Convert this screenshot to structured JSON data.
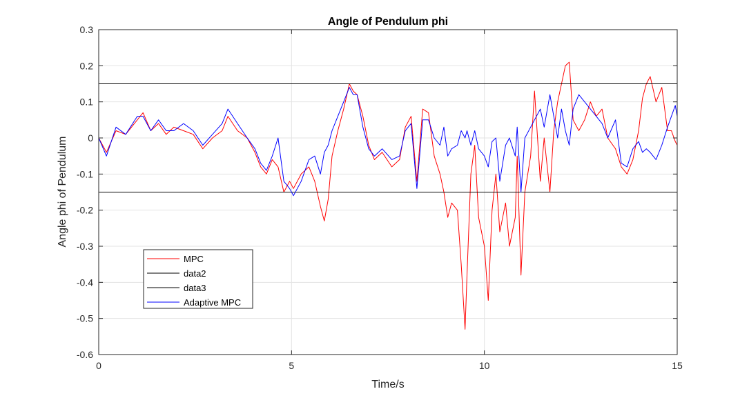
{
  "chart_data": {
    "type": "line",
    "title": "Angle of Pendulum phi",
    "xlabel": "Time/s",
    "ylabel": "Angle phi of Pendulum",
    "xlim": [
      0,
      15
    ],
    "ylim": [
      -0.6,
      0.3
    ],
    "xticks": [
      0,
      5,
      10,
      15
    ],
    "xtick_labels": [
      "0",
      "5",
      "10",
      "15"
    ],
    "yticks": [
      0.3,
      0.2,
      0.1,
      0,
      -0.1,
      -0.2,
      -0.3,
      -0.4,
      -0.5,
      -0.6
    ],
    "ytick_labels": [
      "0.3",
      "0.2",
      "0.1",
      "0",
      "-0.1",
      "-0.2",
      "-0.3",
      "-0.4",
      "-0.5",
      "-0.6"
    ],
    "grid": true,
    "legend_position": "lower-left",
    "series": [
      {
        "name": "MPC",
        "color": "#ff0000",
        "x": [
          0,
          0.2,
          0.45,
          0.7,
          1.0,
          1.15,
          1.35,
          1.55,
          1.75,
          1.95,
          2.2,
          2.45,
          2.7,
          2.95,
          3.2,
          3.35,
          3.6,
          3.85,
          4.05,
          4.2,
          4.35,
          4.5,
          4.65,
          4.8,
          4.95,
          5.05,
          5.25,
          5.45,
          5.6,
          5.75,
          5.85,
          5.95,
          6.05,
          6.2,
          6.35,
          6.5,
          6.6,
          6.7,
          6.85,
          7.0,
          7.15,
          7.35,
          7.6,
          7.8,
          7.95,
          8.1,
          8.25,
          8.4,
          8.55,
          8.7,
          8.85,
          8.95,
          9.05,
          9.15,
          9.3,
          9.4,
          9.5,
          9.55,
          9.65,
          9.75,
          9.85,
          10.0,
          10.1,
          10.2,
          10.3,
          10.4,
          10.55,
          10.65,
          10.8,
          10.85,
          10.95,
          11.05,
          11.2,
          11.3,
          11.45,
          11.55,
          11.7,
          11.8,
          11.9,
          12.0,
          12.1,
          12.2,
          12.3,
          12.45,
          12.6,
          12.75,
          12.9,
          13.05,
          13.2,
          13.4,
          13.55,
          13.7,
          13.85,
          14.0,
          14.1,
          14.2,
          14.3,
          14.45,
          14.6,
          14.75,
          14.85,
          14.95,
          15.0
        ],
        "y": [
          0,
          -0.04,
          0.02,
          0.01,
          0.05,
          0.07,
          0.02,
          0.04,
          0.01,
          0.03,
          0.02,
          0.01,
          -0.03,
          0.0,
          0.02,
          0.06,
          0.02,
          0.0,
          -0.04,
          -0.08,
          -0.1,
          -0.06,
          -0.08,
          -0.15,
          -0.12,
          -0.14,
          -0.1,
          -0.08,
          -0.12,
          -0.19,
          -0.23,
          -0.17,
          -0.05,
          0.02,
          0.08,
          0.15,
          0.13,
          0.12,
          0.06,
          -0.02,
          -0.06,
          -0.04,
          -0.08,
          -0.06,
          0.03,
          0.06,
          -0.12,
          0.08,
          0.07,
          -0.05,
          -0.1,
          -0.15,
          -0.22,
          -0.18,
          -0.2,
          -0.35,
          -0.53,
          -0.38,
          -0.1,
          -0.02,
          -0.22,
          -0.3,
          -0.45,
          -0.2,
          -0.1,
          -0.26,
          -0.18,
          -0.3,
          -0.22,
          -0.05,
          -0.38,
          -0.15,
          -0.05,
          0.13,
          -0.12,
          0.0,
          -0.15,
          0.02,
          0.1,
          0.15,
          0.2,
          0.21,
          0.05,
          0.02,
          0.05,
          0.1,
          0.06,
          0.08,
          0.0,
          -0.03,
          -0.08,
          -0.1,
          -0.06,
          0.02,
          0.11,
          0.15,
          0.17,
          0.1,
          0.14,
          0.02,
          0.02,
          -0.01,
          -0.02
        ]
      },
      {
        "name": "data2",
        "color": "#000000",
        "x": [
          0,
          15
        ],
        "y": [
          0.15,
          0.15
        ]
      },
      {
        "name": "data3",
        "color": "#000000",
        "x": [
          0,
          15
        ],
        "y": [
          -0.15,
          -0.15
        ]
      },
      {
        "name": "Adaptive MPC",
        "color": "#0000ff",
        "x": [
          0,
          0.2,
          0.45,
          0.7,
          1.0,
          1.15,
          1.35,
          1.55,
          1.75,
          1.95,
          2.2,
          2.45,
          2.7,
          2.95,
          3.2,
          3.35,
          3.6,
          3.85,
          4.05,
          4.2,
          4.35,
          4.5,
          4.65,
          4.8,
          4.95,
          5.05,
          5.25,
          5.45,
          5.6,
          5.75,
          5.85,
          5.95,
          6.05,
          6.2,
          6.35,
          6.5,
          6.6,
          6.7,
          6.85,
          7.0,
          7.15,
          7.35,
          7.6,
          7.8,
          7.95,
          8.1,
          8.25,
          8.4,
          8.55,
          8.7,
          8.85,
          8.95,
          9.05,
          9.15,
          9.3,
          9.4,
          9.5,
          9.55,
          9.65,
          9.75,
          9.85,
          10.0,
          10.1,
          10.2,
          10.3,
          10.4,
          10.55,
          10.65,
          10.8,
          10.85,
          10.95,
          11.05,
          11.2,
          11.3,
          11.45,
          11.55,
          11.7,
          11.8,
          11.9,
          12.0,
          12.1,
          12.2,
          12.3,
          12.45,
          12.6,
          12.75,
          12.9,
          13.05,
          13.2,
          13.4,
          13.55,
          13.7,
          13.85,
          14.0,
          14.1,
          14.2,
          14.3,
          14.45,
          14.6,
          14.75,
          14.85,
          14.95,
          15.0
        ],
        "y": [
          0,
          -0.05,
          0.03,
          0.01,
          0.06,
          0.06,
          0.02,
          0.05,
          0.02,
          0.02,
          0.04,
          0.02,
          -0.02,
          0.01,
          0.04,
          0.08,
          0.04,
          0.0,
          -0.03,
          -0.07,
          -0.09,
          -0.05,
          0.0,
          -0.12,
          -0.14,
          -0.16,
          -0.12,
          -0.06,
          -0.05,
          -0.1,
          -0.04,
          -0.02,
          0.02,
          0.06,
          0.1,
          0.14,
          0.12,
          0.12,
          0.03,
          -0.03,
          -0.05,
          -0.03,
          -0.06,
          -0.05,
          0.02,
          0.04,
          -0.14,
          0.05,
          0.05,
          0.0,
          -0.02,
          0.03,
          -0.05,
          -0.03,
          -0.02,
          0.02,
          0.0,
          0.02,
          -0.02,
          0.02,
          -0.03,
          -0.05,
          -0.08,
          -0.01,
          0.0,
          -0.12,
          -0.02,
          0.0,
          -0.05,
          0.03,
          -0.15,
          0.0,
          0.03,
          0.05,
          0.08,
          0.03,
          0.12,
          0.06,
          0.0,
          0.08,
          0.02,
          -0.02,
          0.08,
          0.12,
          0.1,
          0.08,
          0.06,
          0.04,
          0.0,
          0.05,
          -0.07,
          -0.08,
          -0.03,
          -0.01,
          -0.04,
          -0.03,
          -0.04,
          -0.06,
          -0.02,
          0.03,
          0.06,
          0.09,
          0.06
        ]
      }
    ]
  }
}
